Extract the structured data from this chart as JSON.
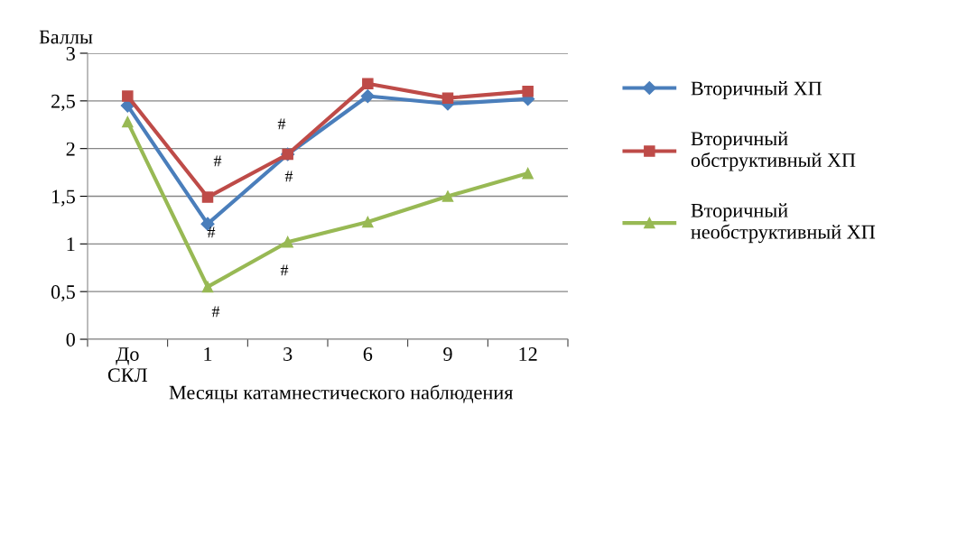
{
  "chart_data": {
    "type": "line",
    "ylabel": "Баллы",
    "xlabel": "Месяцы катамнестического наблюдения",
    "categories": [
      "До\nСКЛ",
      "1",
      "3",
      "6",
      "9",
      "12"
    ],
    "ylim": [
      0,
      3
    ],
    "yticks": [
      0,
      {
        "value": 0.5,
        "label": "0,5"
      },
      1,
      {
        "value": 1.5,
        "label": "1,5"
      },
      2,
      {
        "value": 2.5,
        "label": "2,5"
      },
      3
    ],
    "grid": "y",
    "legend": "right",
    "series": [
      {
        "name": "Вторичный ХП",
        "color": "#4a7ebb",
        "marker": "diamond",
        "values": [
          2.45,
          1.21,
          1.94,
          2.55,
          2.47,
          2.52
        ]
      },
      {
        "name": "Вторичный\nобструктивный ХП",
        "color": "#be4b48",
        "marker": "square",
        "values": [
          2.55,
          1.49,
          1.94,
          2.68,
          2.53,
          2.6
        ]
      },
      {
        "name": "Вторичный\nнеобструктивный ХП",
        "color": "#98b954",
        "marker": "triangle",
        "values": [
          2.28,
          0.55,
          1.02,
          1.23,
          1.5,
          1.74
        ]
      }
    ],
    "annotations": [
      "#",
      "#",
      "#",
      "#",
      "#",
      "#"
    ]
  }
}
